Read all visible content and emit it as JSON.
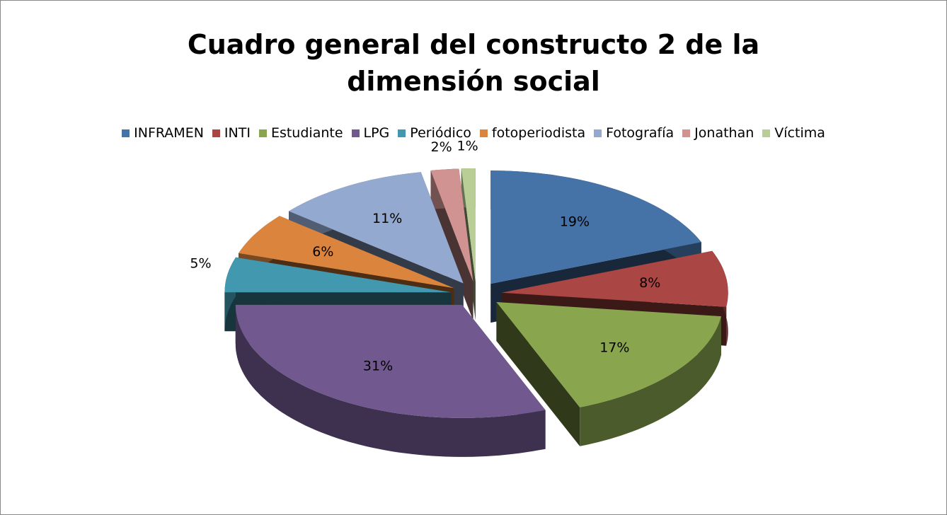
{
  "chart_data": {
    "type": "pie3d",
    "title": "Cuadro general del constructo 2 de la dimensión social",
    "categories": [
      "INFRAMEN",
      "INTI",
      "Estudiante",
      "LPG",
      "Periódico",
      "fotoperiodista",
      "Fotografía",
      "Jonathan",
      "Víctima"
    ],
    "values": [
      19,
      8,
      17,
      31,
      5,
      6,
      11,
      2,
      1
    ],
    "value_labels": [
      "19%",
      "8%",
      "17%",
      "31%",
      "5%",
      "6%",
      "11%",
      "2%",
      "1%"
    ],
    "colors": [
      "#4572a7",
      "#aa4643",
      "#89a54e",
      "#71588f",
      "#4198af",
      "#db843d",
      "#93a9cf",
      "#d19392",
      "#b9cd96"
    ],
    "legend": "top"
  }
}
